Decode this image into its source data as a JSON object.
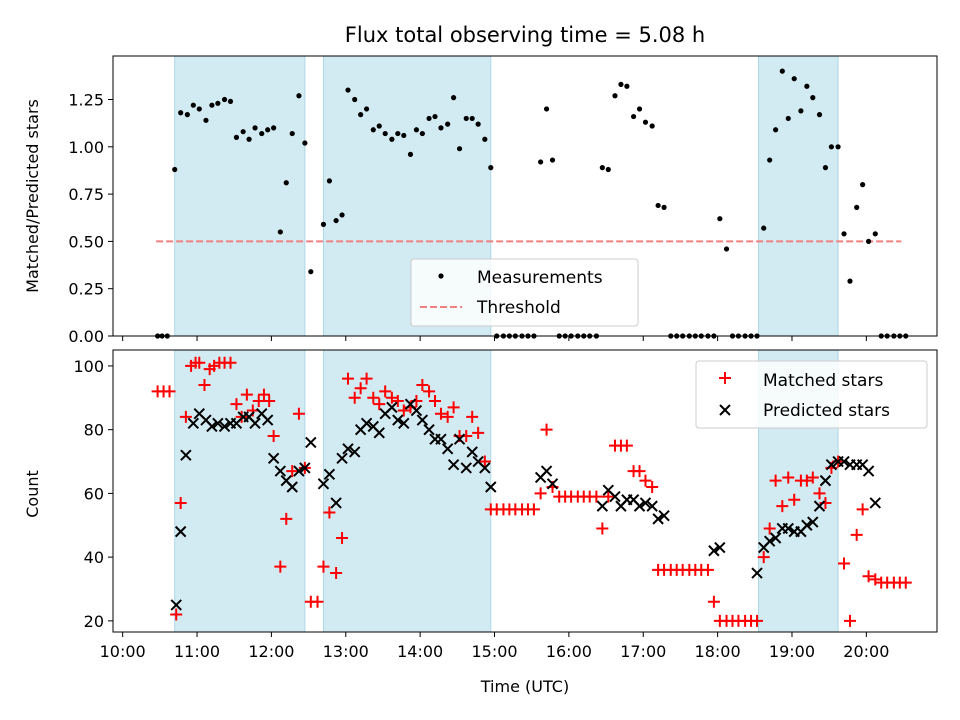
{
  "title": "Flux total observing time = 5.08 h",
  "chart_data": [
    {
      "type": "scatter",
      "ylabel": "Matched/Predicted stars",
      "xlabel": "",
      "ylim": [
        0,
        1.48
      ],
      "xlim_hours": [
        9.87,
        20.95
      ],
      "y_ticks": [
        0,
        0.25,
        0.5,
        0.75,
        1.0,
        1.25
      ],
      "y_tick_labels": [
        "0.00",
        "0.25",
        "0.50",
        "0.75",
        "1.00",
        "1.25"
      ],
      "grid": false,
      "legend_placement": "bottom-center",
      "legend": {
        "measurements_label": "Measurements",
        "threshold_label": "Threshold"
      },
      "threshold": {
        "value": 0.5,
        "x_start": 10.45,
        "x_end": 20.47,
        "color": "#f08080"
      },
      "shaded_intervals": [
        [
          10.7,
          12.45
        ],
        [
          12.7,
          14.95
        ],
        [
          18.55,
          19.62
        ]
      ],
      "shade_color": "#add8e6",
      "measurements": [
        [
          10.47,
          0
        ],
        [
          10.53,
          0
        ],
        [
          10.6,
          0
        ],
        [
          10.7,
          0.88
        ],
        [
          10.78,
          1.18
        ],
        [
          10.87,
          1.17
        ],
        [
          10.95,
          1.22
        ],
        [
          11.03,
          1.2
        ],
        [
          11.12,
          1.14
        ],
        [
          11.2,
          1.22
        ],
        [
          11.28,
          1.23
        ],
        [
          11.37,
          1.25
        ],
        [
          11.45,
          1.24
        ],
        [
          11.53,
          1.05
        ],
        [
          11.62,
          1.08
        ],
        [
          11.7,
          1.04
        ],
        [
          11.78,
          1.1
        ],
        [
          11.87,
          1.07
        ],
        [
          11.95,
          1.09
        ],
        [
          12.03,
          1.1
        ],
        [
          12.12,
          0.55
        ],
        [
          12.2,
          0.81
        ],
        [
          12.28,
          1.07
        ],
        [
          12.37,
          1.27
        ],
        [
          12.45,
          1.02
        ],
        [
          12.53,
          0.34
        ],
        [
          12.7,
          0.59
        ],
        [
          12.78,
          0.82
        ],
        [
          12.87,
          0.61
        ],
        [
          12.95,
          0.64
        ],
        [
          13.03,
          1.3
        ],
        [
          13.12,
          1.25
        ],
        [
          13.2,
          1.17
        ],
        [
          13.28,
          1.2
        ],
        [
          13.37,
          1.09
        ],
        [
          13.45,
          1.11
        ],
        [
          13.53,
          1.07
        ],
        [
          13.62,
          1.04
        ],
        [
          13.7,
          1.07
        ],
        [
          13.78,
          1.06
        ],
        [
          13.87,
          0.96
        ],
        [
          13.95,
          1.09
        ],
        [
          14.03,
          1.07
        ],
        [
          14.12,
          1.15
        ],
        [
          14.2,
          1.16
        ],
        [
          14.28,
          1.1
        ],
        [
          14.37,
          1.12
        ],
        [
          14.45,
          1.26
        ],
        [
          14.53,
          0.99
        ],
        [
          14.62,
          1.15
        ],
        [
          14.7,
          1.15
        ],
        [
          14.78,
          1.12
        ],
        [
          14.87,
          1.04
        ],
        [
          14.95,
          0.89
        ],
        [
          15.03,
          0
        ],
        [
          15.12,
          0
        ],
        [
          15.2,
          0
        ],
        [
          15.28,
          0
        ],
        [
          15.37,
          0
        ],
        [
          15.45,
          0
        ],
        [
          15.53,
          0
        ],
        [
          15.62,
          0.92
        ],
        [
          15.7,
          1.2
        ],
        [
          15.78,
          0.93
        ],
        [
          15.87,
          0
        ],
        [
          15.95,
          0
        ],
        [
          16.03,
          0
        ],
        [
          16.12,
          0
        ],
        [
          16.2,
          0
        ],
        [
          16.28,
          0
        ],
        [
          16.37,
          0
        ],
        [
          16.45,
          0.89
        ],
        [
          16.53,
          0.88
        ],
        [
          16.62,
          1.27
        ],
        [
          16.7,
          1.33
        ],
        [
          16.78,
          1.32
        ],
        [
          16.87,
          1.16
        ],
        [
          16.95,
          1.2
        ],
        [
          17.03,
          1.13
        ],
        [
          17.12,
          1.11
        ],
        [
          17.2,
          0.69
        ],
        [
          17.28,
          0.68
        ],
        [
          17.37,
          0
        ],
        [
          17.45,
          0
        ],
        [
          17.53,
          0
        ],
        [
          17.62,
          0
        ],
        [
          17.7,
          0
        ],
        [
          17.78,
          0
        ],
        [
          17.87,
          0
        ],
        [
          17.95,
          0
        ],
        [
          18.03,
          0.62
        ],
        [
          18.12,
          0.46
        ],
        [
          18.2,
          0
        ],
        [
          18.28,
          0
        ],
        [
          18.37,
          0
        ],
        [
          18.45,
          0
        ],
        [
          18.53,
          0
        ],
        [
          18.62,
          0.57
        ],
        [
          18.7,
          0.93
        ],
        [
          18.78,
          1.09
        ],
        [
          18.87,
          1.4
        ],
        [
          18.95,
          1.15
        ],
        [
          19.03,
          1.36
        ],
        [
          19.12,
          1.19
        ],
        [
          19.2,
          1.32
        ],
        [
          19.28,
          1.26
        ],
        [
          19.37,
          1.17
        ],
        [
          19.45,
          0.89
        ],
        [
          19.53,
          1.0
        ],
        [
          19.62,
          1.0
        ],
        [
          19.7,
          0.54
        ],
        [
          19.78,
          0.29
        ],
        [
          19.87,
          0.68
        ],
        [
          19.95,
          0.8
        ],
        [
          20.03,
          0.5
        ],
        [
          20.12,
          0.54
        ],
        [
          20.2,
          0
        ],
        [
          20.28,
          0
        ],
        [
          20.37,
          0
        ],
        [
          20.45,
          0
        ],
        [
          20.53,
          0
        ]
      ]
    },
    {
      "type": "scatter",
      "xlabel": "Time (UTC)",
      "ylabel": "Count",
      "ylim": [
        16.5,
        105
      ],
      "xlim_hours": [
        9.87,
        20.95
      ],
      "y_ticks": [
        20,
        40,
        60,
        80,
        100
      ],
      "y_tick_labels": [
        "20",
        "40",
        "60",
        "80",
        "100"
      ],
      "x_ticks_hours": [
        10,
        11,
        12,
        13,
        14,
        15,
        16,
        17,
        18,
        19,
        20
      ],
      "x_tick_labels": [
        "10:00",
        "11:00",
        "12:00",
        "13:00",
        "14:00",
        "15:00",
        "16:00",
        "17:00",
        "18:00",
        "19:00",
        "20:00"
      ],
      "grid": false,
      "legend_placement": "top-right",
      "legend": {
        "matched_label": "Matched stars",
        "predicted_label": "Predicted stars"
      },
      "matched_color": "#ff0000",
      "predicted_color": "#000000",
      "matched": [
        [
          10.47,
          92
        ],
        [
          10.55,
          92
        ],
        [
          10.63,
          92
        ],
        [
          10.72,
          22
        ],
        [
          10.78,
          57
        ],
        [
          10.85,
          84
        ],
        [
          10.92,
          100
        ],
        [
          10.98,
          101
        ],
        [
          11.03,
          101
        ],
        [
          11.1,
          94
        ],
        [
          11.17,
          99
        ],
        [
          11.23,
          100
        ],
        [
          11.3,
          101
        ],
        [
          11.37,
          101
        ],
        [
          11.45,
          101
        ],
        [
          11.53,
          88
        ],
        [
          11.6,
          84
        ],
        [
          11.67,
          91
        ],
        [
          11.75,
          86
        ],
        [
          11.83,
          89
        ],
        [
          11.9,
          91
        ],
        [
          11.97,
          89
        ],
        [
          12.03,
          78
        ],
        [
          12.12,
          37
        ],
        [
          12.2,
          52
        ],
        [
          12.28,
          67
        ],
        [
          12.37,
          85
        ],
        [
          12.45,
          68
        ],
        [
          12.53,
          26
        ],
        [
          12.62,
          26
        ],
        [
          12.7,
          37
        ],
        [
          12.78,
          54
        ],
        [
          12.87,
          35
        ],
        [
          12.95,
          46
        ],
        [
          13.03,
          96
        ],
        [
          13.12,
          90
        ],
        [
          13.2,
          93
        ],
        [
          13.28,
          96
        ],
        [
          13.37,
          90
        ],
        [
          13.45,
          88
        ],
        [
          13.53,
          92
        ],
        [
          13.62,
          90
        ],
        [
          13.7,
          89
        ],
        [
          13.78,
          86
        ],
        [
          13.87,
          87
        ],
        [
          13.95,
          89
        ],
        [
          14.03,
          94
        ],
        [
          14.12,
          92
        ],
        [
          14.2,
          89
        ],
        [
          14.28,
          85
        ],
        [
          14.37,
          84
        ],
        [
          14.45,
          87
        ],
        [
          14.53,
          78
        ],
        [
          14.62,
          78
        ],
        [
          14.7,
          84
        ],
        [
          14.78,
          79
        ],
        [
          14.87,
          70
        ],
        [
          14.95,
          55
        ],
        [
          15.03,
          55
        ],
        [
          15.12,
          55
        ],
        [
          15.2,
          55
        ],
        [
          15.28,
          55
        ],
        [
          15.37,
          55
        ],
        [
          15.45,
          55
        ],
        [
          15.53,
          55
        ],
        [
          15.62,
          60
        ],
        [
          15.7,
          80
        ],
        [
          15.78,
          62
        ],
        [
          15.87,
          59
        ],
        [
          15.95,
          59
        ],
        [
          16.03,
          59
        ],
        [
          16.12,
          59
        ],
        [
          16.2,
          59
        ],
        [
          16.28,
          59
        ],
        [
          16.37,
          59
        ],
        [
          16.45,
          49
        ],
        [
          16.53,
          59
        ],
        [
          16.62,
          75
        ],
        [
          16.7,
          75
        ],
        [
          16.78,
          75
        ],
        [
          16.87,
          67
        ],
        [
          16.95,
          67
        ],
        [
          17.03,
          64
        ],
        [
          17.12,
          62
        ],
        [
          17.2,
          36
        ],
        [
          17.28,
          36
        ],
        [
          17.37,
          36
        ],
        [
          17.45,
          36
        ],
        [
          17.53,
          36
        ],
        [
          17.62,
          36
        ],
        [
          17.7,
          36
        ],
        [
          17.78,
          36
        ],
        [
          17.87,
          36
        ],
        [
          17.95,
          26
        ],
        [
          18.03,
          20
        ],
        [
          18.12,
          20
        ],
        [
          18.2,
          20
        ],
        [
          18.28,
          20
        ],
        [
          18.37,
          20
        ],
        [
          18.45,
          20
        ],
        [
          18.53,
          20
        ],
        [
          18.62,
          40
        ],
        [
          18.7,
          49
        ],
        [
          18.78,
          64
        ],
        [
          18.87,
          56
        ],
        [
          18.95,
          65
        ],
        [
          19.03,
          58
        ],
        [
          19.12,
          64
        ],
        [
          19.2,
          64
        ],
        [
          19.28,
          65
        ],
        [
          19.37,
          60
        ],
        [
          19.45,
          57
        ],
        [
          19.53,
          68
        ],
        [
          19.62,
          70
        ],
        [
          19.7,
          38
        ],
        [
          19.78,
          20
        ],
        [
          19.87,
          47
        ],
        [
          19.95,
          55
        ],
        [
          20.03,
          34
        ],
        [
          20.12,
          33
        ],
        [
          20.2,
          32
        ],
        [
          20.28,
          32
        ],
        [
          20.37,
          32
        ],
        [
          20.45,
          32
        ],
        [
          20.53,
          32
        ]
      ],
      "predicted": [
        [
          10.72,
          25
        ],
        [
          10.78,
          48
        ],
        [
          10.85,
          72
        ],
        [
          10.95,
          82
        ],
        [
          11.03,
          85
        ],
        [
          11.12,
          83
        ],
        [
          11.2,
          81
        ],
        [
          11.28,
          82
        ],
        [
          11.37,
          81
        ],
        [
          11.45,
          82
        ],
        [
          11.53,
          82
        ],
        [
          11.62,
          84
        ],
        [
          11.7,
          84
        ],
        [
          11.78,
          82
        ],
        [
          11.87,
          85
        ],
        [
          11.95,
          83
        ],
        [
          12.03,
          71
        ],
        [
          12.12,
          67
        ],
        [
          12.2,
          64
        ],
        [
          12.28,
          62
        ],
        [
          12.37,
          67
        ],
        [
          12.45,
          68
        ],
        [
          12.53,
          76
        ],
        [
          12.7,
          63
        ],
        [
          12.78,
          66
        ],
        [
          12.87,
          57
        ],
        [
          12.95,
          71
        ],
        [
          13.03,
          74
        ],
        [
          13.12,
          73
        ],
        [
          13.2,
          80
        ],
        [
          13.28,
          82
        ],
        [
          13.37,
          81
        ],
        [
          13.45,
          79
        ],
        [
          13.53,
          85
        ],
        [
          13.62,
          87
        ],
        [
          13.7,
          83
        ],
        [
          13.78,
          82
        ],
        [
          13.87,
          88
        ],
        [
          13.95,
          86
        ],
        [
          14.03,
          83
        ],
        [
          14.12,
          80
        ],
        [
          14.2,
          77
        ],
        [
          14.28,
          77
        ],
        [
          14.37,
          74
        ],
        [
          14.45,
          69
        ],
        [
          14.53,
          77
        ],
        [
          14.62,
          68
        ],
        [
          14.7,
          73
        ],
        [
          14.78,
          70
        ],
        [
          14.87,
          68
        ],
        [
          14.95,
          62
        ],
        [
          15.62,
          65
        ],
        [
          15.7,
          67
        ],
        [
          15.78,
          63
        ],
        [
          16.45,
          56
        ],
        [
          16.53,
          61
        ],
        [
          16.62,
          59
        ],
        [
          16.7,
          56
        ],
        [
          16.78,
          58
        ],
        [
          16.87,
          58
        ],
        [
          16.95,
          56
        ],
        [
          17.03,
          57
        ],
        [
          17.12,
          56
        ],
        [
          17.2,
          52
        ],
        [
          17.28,
          53
        ],
        [
          17.95,
          42
        ],
        [
          18.03,
          43
        ],
        [
          18.53,
          35
        ],
        [
          18.62,
          43
        ],
        [
          18.7,
          45
        ],
        [
          18.78,
          46
        ],
        [
          18.87,
          49
        ],
        [
          18.95,
          49
        ],
        [
          19.03,
          48
        ],
        [
          19.12,
          48
        ],
        [
          19.2,
          50
        ],
        [
          19.28,
          51
        ],
        [
          19.37,
          56
        ],
        [
          19.45,
          64
        ],
        [
          19.53,
          69
        ],
        [
          19.62,
          70
        ],
        [
          19.7,
          70
        ],
        [
          19.78,
          69
        ],
        [
          19.87,
          69
        ],
        [
          19.95,
          69
        ],
        [
          20.03,
          67
        ],
        [
          20.12,
          57
        ]
      ]
    }
  ]
}
